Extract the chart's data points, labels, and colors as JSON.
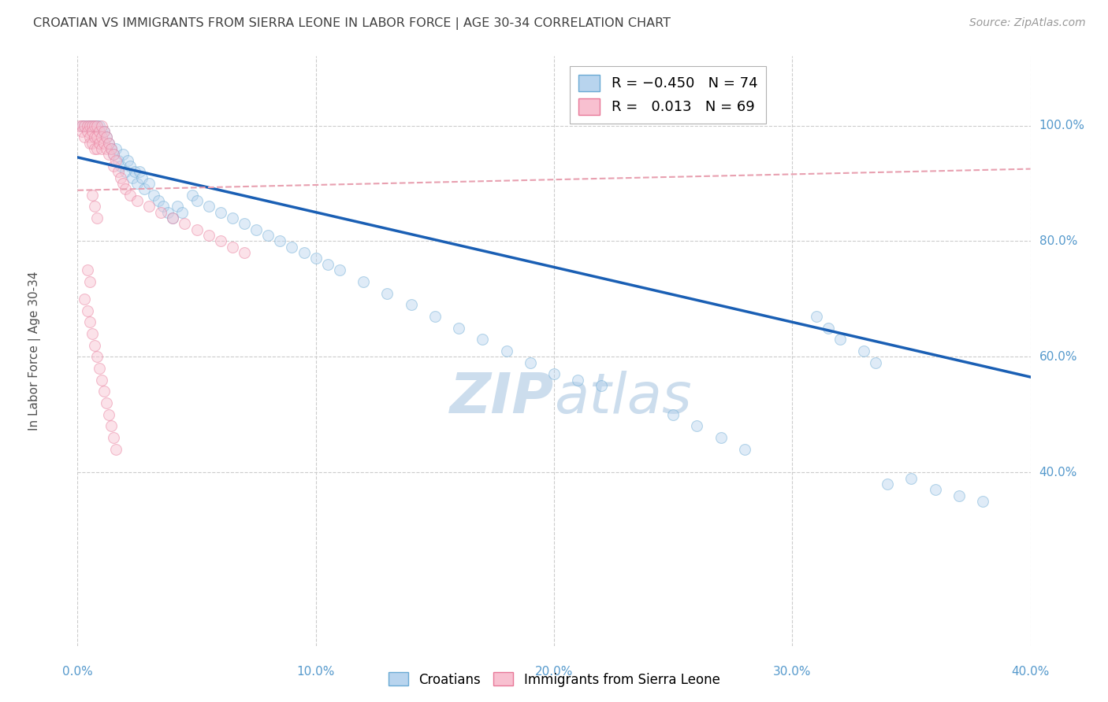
{
  "title": "CROATIAN VS IMMIGRANTS FROM SIERRA LEONE IN LABOR FORCE | AGE 30-34 CORRELATION CHART",
  "source": "Source: ZipAtlas.com",
  "ylabel": "In Labor Force | Age 30-34",
  "legend_labels_bottom": [
    "Croatians",
    "Immigrants from Sierra Leone"
  ],
  "xlim": [
    0.0,
    0.4
  ],
  "ylim": [
    0.1,
    1.12
  ],
  "yticks": [
    0.4,
    0.6,
    0.8,
    1.0
  ],
  "xticks": [
    0.0,
    0.1,
    0.2,
    0.3,
    0.4
  ],
  "xtick_labels": [
    "0.0%",
    "10.0%",
    "20.0%",
    "30.0%",
    "40.0%"
  ],
  "ytick_labels": [
    "40.0%",
    "60.0%",
    "80.0%",
    "100.0%"
  ],
  "blue_color": "#b8d4ee",
  "blue_edge_color": "#6aaad4",
  "pink_color": "#f8c0d0",
  "pink_edge_color": "#e87898",
  "regression_blue_color": "#1a5fb4",
  "regression_pink_color": "#e8a0b0",
  "grid_color": "#cccccc",
  "axis_color": "#5599cc",
  "watermark_color": "#ccdded",
  "blue_scatter_x": [
    0.002,
    0.003,
    0.004,
    0.005,
    0.006,
    0.007,
    0.008,
    0.009,
    0.01,
    0.011,
    0.012,
    0.013,
    0.014,
    0.015,
    0.016,
    0.017,
    0.018,
    0.019,
    0.02,
    0.021,
    0.022,
    0.023,
    0.024,
    0.025,
    0.026,
    0.027,
    0.028,
    0.03,
    0.032,
    0.034,
    0.036,
    0.038,
    0.04,
    0.042,
    0.044,
    0.048,
    0.05,
    0.055,
    0.06,
    0.065,
    0.07,
    0.075,
    0.08,
    0.085,
    0.09,
    0.095,
    0.1,
    0.105,
    0.11,
    0.12,
    0.13,
    0.14,
    0.15,
    0.16,
    0.17,
    0.18,
    0.19,
    0.2,
    0.21,
    0.22,
    0.31,
    0.315,
    0.32,
    0.33,
    0.335,
    0.34,
    0.35,
    0.36,
    0.37,
    0.38,
    0.25,
    0.26,
    0.27,
    0.28
  ],
  "blue_scatter_y": [
    1.0,
    1.0,
    1.0,
    1.0,
    1.0,
    1.0,
    1.0,
    1.0,
    0.99,
    0.99,
    0.98,
    0.97,
    0.96,
    0.95,
    0.96,
    0.94,
    0.93,
    0.95,
    0.92,
    0.94,
    0.93,
    0.91,
    0.92,
    0.9,
    0.92,
    0.91,
    0.89,
    0.9,
    0.88,
    0.87,
    0.86,
    0.85,
    0.84,
    0.86,
    0.85,
    0.88,
    0.87,
    0.86,
    0.85,
    0.84,
    0.83,
    0.82,
    0.81,
    0.8,
    0.79,
    0.78,
    0.77,
    0.76,
    0.75,
    0.73,
    0.71,
    0.69,
    0.67,
    0.65,
    0.63,
    0.61,
    0.59,
    0.57,
    0.56,
    0.55,
    0.67,
    0.65,
    0.63,
    0.61,
    0.59,
    0.38,
    0.39,
    0.37,
    0.36,
    0.35,
    0.5,
    0.48,
    0.46,
    0.44
  ],
  "pink_scatter_x": [
    0.001,
    0.002,
    0.002,
    0.003,
    0.003,
    0.004,
    0.004,
    0.005,
    0.005,
    0.005,
    0.006,
    0.006,
    0.006,
    0.007,
    0.007,
    0.007,
    0.008,
    0.008,
    0.008,
    0.009,
    0.009,
    0.01,
    0.01,
    0.01,
    0.011,
    0.011,
    0.012,
    0.012,
    0.013,
    0.013,
    0.014,
    0.015,
    0.015,
    0.016,
    0.017,
    0.018,
    0.019,
    0.02,
    0.022,
    0.025,
    0.03,
    0.035,
    0.04,
    0.045,
    0.05,
    0.055,
    0.06,
    0.065,
    0.07,
    0.006,
    0.007,
    0.008,
    0.004,
    0.005,
    0.003,
    0.004,
    0.005,
    0.006,
    0.007,
    0.008,
    0.009,
    0.01,
    0.011,
    0.012,
    0.013,
    0.014,
    0.015,
    0.016
  ],
  "pink_scatter_y": [
    1.0,
    1.0,
    0.99,
    1.0,
    0.98,
    1.0,
    0.99,
    1.0,
    0.98,
    0.97,
    1.0,
    0.99,
    0.97,
    1.0,
    0.98,
    0.96,
    1.0,
    0.98,
    0.96,
    0.99,
    0.97,
    1.0,
    0.98,
    0.96,
    0.99,
    0.97,
    0.98,
    0.96,
    0.97,
    0.95,
    0.96,
    0.95,
    0.93,
    0.94,
    0.92,
    0.91,
    0.9,
    0.89,
    0.88,
    0.87,
    0.86,
    0.85,
    0.84,
    0.83,
    0.82,
    0.81,
    0.8,
    0.79,
    0.78,
    0.88,
    0.86,
    0.84,
    0.75,
    0.73,
    0.7,
    0.68,
    0.66,
    0.64,
    0.62,
    0.6,
    0.58,
    0.56,
    0.54,
    0.52,
    0.5,
    0.48,
    0.46,
    0.44
  ],
  "blue_line_x": [
    0.0,
    0.4
  ],
  "blue_line_y": [
    0.945,
    0.565
  ],
  "pink_line_x": [
    0.0,
    0.4
  ],
  "pink_line_y": [
    0.888,
    0.925
  ],
  "marker_size": 100,
  "marker_alpha": 0.45,
  "figsize": [
    14.06,
    8.92
  ],
  "dpi": 100
}
